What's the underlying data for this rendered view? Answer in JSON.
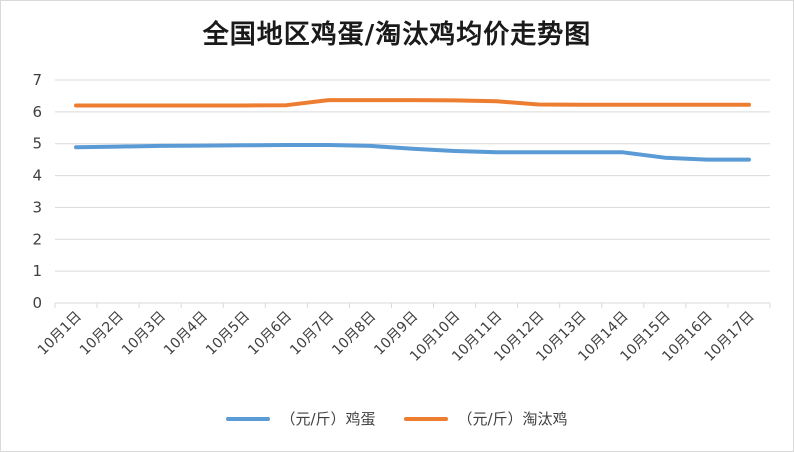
{
  "title": "全国地区鸡蛋/淘汰鸡均价走势图",
  "colors": {
    "egg": "#5b9bd5",
    "hen": "#ed7d31",
    "grid": "#d9d9d9",
    "text": "#404040"
  },
  "legend": {
    "egg_label": "（元/斤）鸡蛋",
    "hen_label": "（元/斤）淘汰鸡"
  },
  "chart_data": {
    "type": "line",
    "title": "全国地区鸡蛋/淘汰鸡均价走势图",
    "xlabel": "",
    "ylabel": "",
    "ylim": [
      0,
      7
    ],
    "yticks": [
      0,
      1,
      2,
      3,
      4,
      5,
      6,
      7
    ],
    "grid": true,
    "legend_position": "bottom",
    "categories": [
      "10月1日",
      "10月2日",
      "10月3日",
      "10月4日",
      "10月5日",
      "10月6日",
      "10月7日",
      "10月8日",
      "10月9日",
      "10月10日",
      "10月11日",
      "10月12日",
      "10月13日",
      "10月14日",
      "10月15日",
      "10月16日",
      "10月17日"
    ],
    "series": [
      {
        "name": "（元/斤）鸡蛋",
        "color": "#5b9bd5",
        "values": [
          4.89,
          4.91,
          4.93,
          4.94,
          4.95,
          4.96,
          4.96,
          4.93,
          4.84,
          4.77,
          4.73,
          4.73,
          4.73,
          4.73,
          4.56,
          4.5,
          4.5
        ]
      },
      {
        "name": "（元/斤）淘汰鸡",
        "color": "#ed7d31",
        "values": [
          6.2,
          6.2,
          6.2,
          6.2,
          6.2,
          6.21,
          6.37,
          6.37,
          6.37,
          6.36,
          6.33,
          6.23,
          6.22,
          6.22,
          6.22,
          6.22,
          6.22
        ]
      }
    ]
  }
}
